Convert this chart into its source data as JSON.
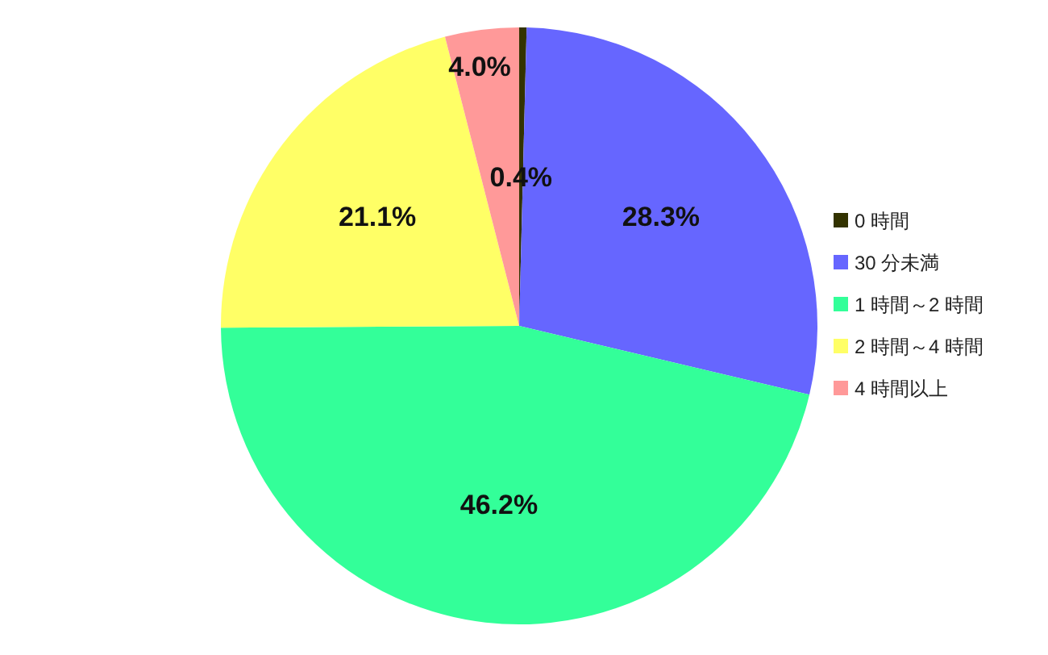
{
  "chart_data": {
    "type": "pie",
    "categories": [
      "0 時間",
      "30 分未満",
      "1 時間～2 時間",
      "2 時間～4 時間",
      "4 時間以上"
    ],
    "values": [
      0.4,
      28.3,
      46.2,
      21.1,
      4.0
    ],
    "colors": [
      "#333300",
      "#6666ff",
      "#33ff99",
      "#ffff66",
      "#ff9999"
    ],
    "value_labels": [
      "0.4%",
      "28.3%",
      "46.2%",
      "21.1%",
      "4.0%"
    ],
    "legend": "right"
  }
}
